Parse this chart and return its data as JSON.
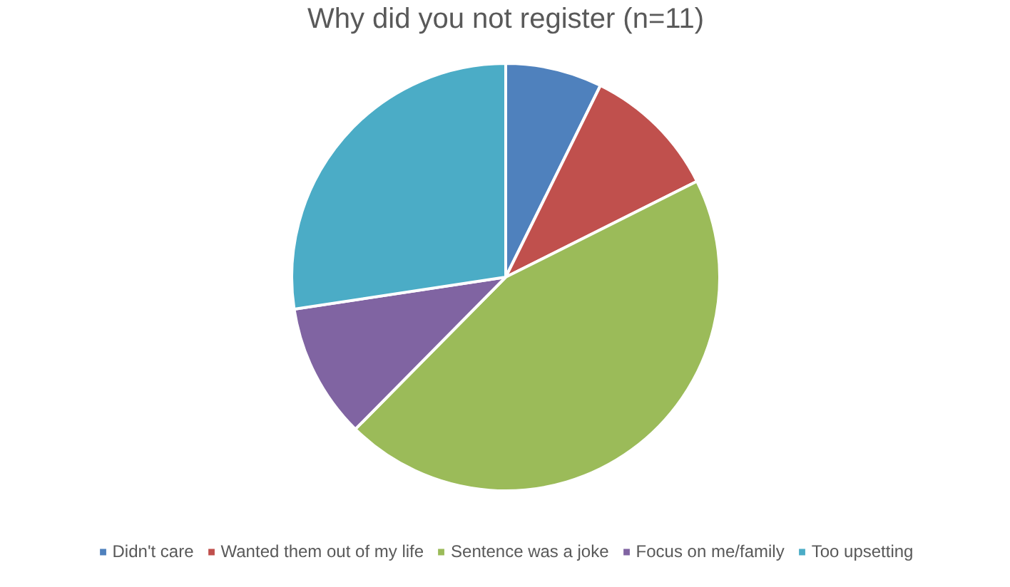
{
  "chart_data": {
    "type": "pie",
    "title": "Why did you not register (n=11)",
    "categories": [
      "Didn't care",
      "Wanted them out of my life",
      "Sentence was a joke",
      "Focus on me/family",
      "Too upsetting"
    ],
    "values": [
      7.3,
      10.3,
      44.8,
      10.2,
      27.4
    ],
    "colors": [
      "#4f81bd",
      "#c0504d",
      "#9bbb59",
      "#8064a2",
      "#4bacc6"
    ],
    "legend": "bottom"
  }
}
